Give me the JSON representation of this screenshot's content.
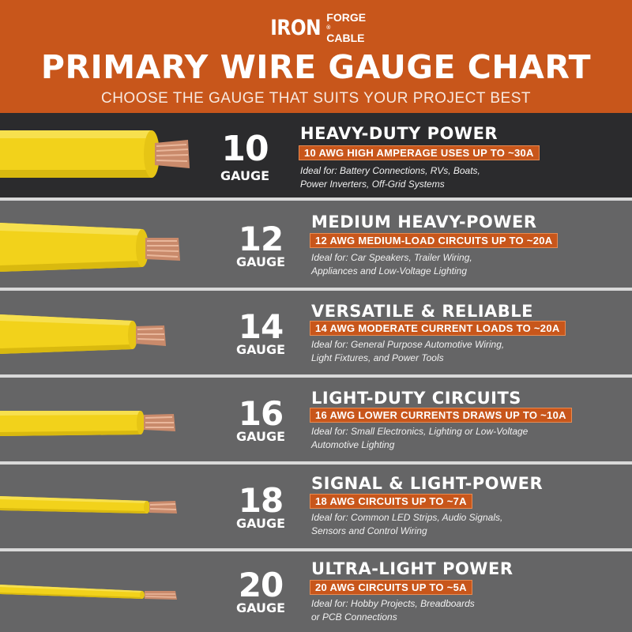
{
  "brand": {
    "iron": "IRON",
    "forge": "FORGE",
    "cable": "CABLE",
    "reg": "®"
  },
  "title": "PRIMARY WIRE GAUGE CHART",
  "subtitle": "CHOOSE THE GAUGE THAT SUITS YOUR PROJECT BEST",
  "gauge_word": "GAUGE",
  "colors": {
    "orange": "#c8561b",
    "wire_yellow": "#f2d21b",
    "copper": "#c98a6b"
  },
  "rows": [
    {
      "number": "10",
      "heading": "HEAVY-DUTY POWER",
      "badge": "10 AWG HIGH AMPERAGE USES UP TO ~30A",
      "desc1": "Ideal for: Battery Connections, RVs, Boats,",
      "desc2": "Power Inverters, Off-Grid Systems"
    },
    {
      "number": "12",
      "heading": "MEDIUM HEAVY-POWER",
      "badge": "12 AWG MEDIUM-LOAD CIRCUITS UP TO ~20A",
      "desc1": "Ideal for: Car Speakers, Trailer Wiring,",
      "desc2": "Appliances and Low-Voltage Lighting"
    },
    {
      "number": "14",
      "heading": "VERSATILE & RELIABLE",
      "badge": "14 AWG MODERATE CURRENT LOADS TO ~20A",
      "desc1": "Ideal for: General Purpose Automotive Wiring,",
      "desc2": "Light Fixtures, and Power Tools"
    },
    {
      "number": "16",
      "heading": "LIGHT-DUTY CIRCUITS",
      "badge": "16 AWG LOWER CURRENTS DRAWS UP TO ~10A",
      "desc1": "Ideal for: Small Electronics, Lighting or Low-Voltage",
      "desc2": "Automotive Lighting"
    },
    {
      "number": "18",
      "heading": "SIGNAL & LIGHT-POWER",
      "badge": "18 AWG CIRCUITS UP TO ~7A",
      "desc1": "Ideal for: Common LED Strips, Audio Signals,",
      "desc2": "Sensors and Control Wiring"
    },
    {
      "number": "20",
      "heading": "ULTRA-LIGHT POWER",
      "badge": "20 AWG CIRCUITS UP TO ~5A",
      "desc1": "Ideal for: Hobby Projects, Breadboards",
      "desc2": "or PCB Connections"
    }
  ]
}
